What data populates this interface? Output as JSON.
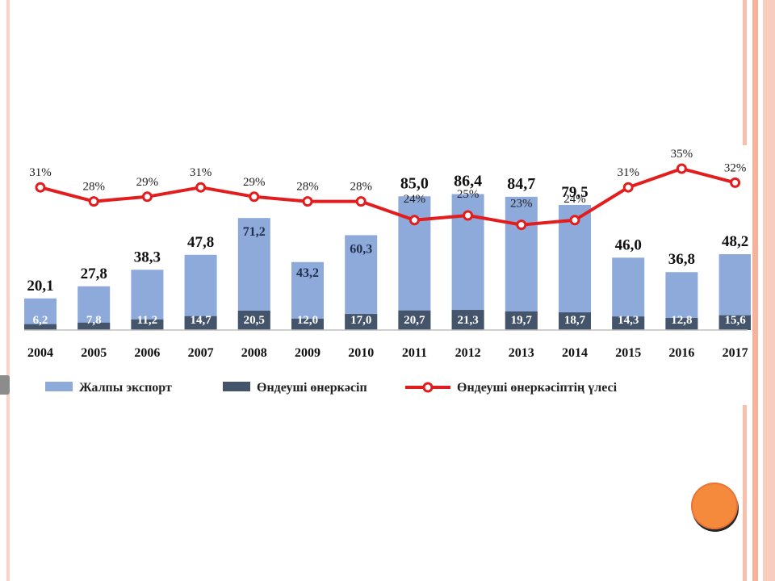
{
  "chart_data": {
    "type": "bar",
    "stacked": false,
    "categories": [
      "2004",
      "2005",
      "2006",
      "2007",
      "2008",
      "2009",
      "2010",
      "2011",
      "2012",
      "2013",
      "2014",
      "2015",
      "2016",
      "2017"
    ],
    "series": [
      {
        "name": "Жалпы экспорт",
        "kind": "bar",
        "color": "#8eaadb",
        "values": [
          20.1,
          27.8,
          38.3,
          47.8,
          71.2,
          43.2,
          60.3,
          85.0,
          86.4,
          84.7,
          79.5,
          46.0,
          36.8,
          48.2
        ],
        "labels": [
          "20,1",
          "27,8",
          "38,3",
          "47,8",
          "71,2",
          "43,2",
          "60,3",
          "85,0",
          "86,4",
          "84,7",
          "79,5",
          "46,0",
          "36,8",
          "48,2"
        ]
      },
      {
        "name": "Өндеуші өнеркәсіп",
        "kind": "bar",
        "color": "#44546a",
        "values": [
          6.2,
          7.8,
          11.2,
          14.7,
          20.5,
          12.0,
          17.0,
          20.7,
          21.3,
          19.7,
          18.7,
          14.3,
          12.8,
          15.6
        ],
        "labels": [
          "6,2",
          "7,8",
          "11,2",
          "14,7",
          "20,5",
          "12,0",
          "17,0",
          "20,7",
          "21,3",
          "19,7",
          "18,7",
          "14,3",
          "12,8",
          "15,6"
        ]
      },
      {
        "name": "Өндеуші өнеркәсіптің үлесі",
        "kind": "line",
        "color": "#e31d1d",
        "values": [
          31,
          28,
          29,
          31,
          29,
          28,
          28,
          24,
          25,
          23,
          24,
          31,
          35,
          32
        ],
        "labels": [
          "31%",
          "28%",
          "29%",
          "31%",
          "29%",
          "28%",
          "28%",
          "24%",
          "25%",
          "23%",
          "24%",
          "31%",
          "35%",
          "32%"
        ]
      }
    ],
    "grid": false,
    "legend_position": "bottom"
  }
}
